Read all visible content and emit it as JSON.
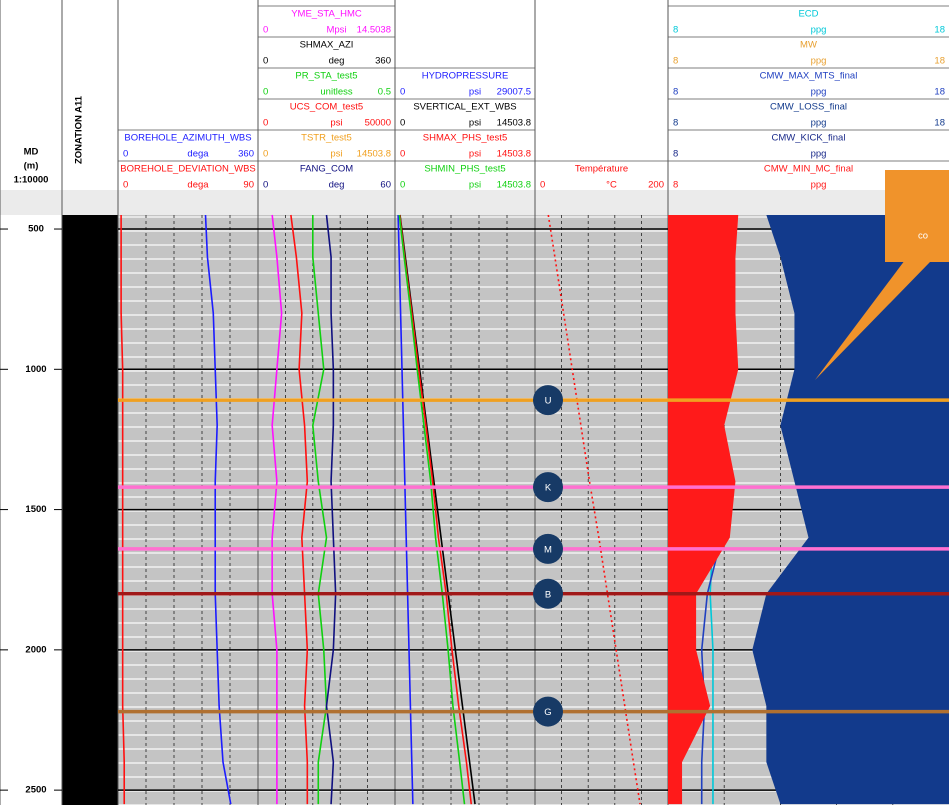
{
  "header": {
    "md": [
      "MD",
      "(m)",
      "1:10000"
    ],
    "zonation": "ZONATION A11",
    "callout": "co"
  },
  "chart_data": {
    "type": "well-log",
    "ylim": [
      450,
      2553
    ],
    "yticks": [
      500,
      1000,
      1500,
      2000,
      2500
    ],
    "depths": [
      450,
      600,
      800,
      1000,
      1200,
      1400,
      1600,
      1800,
      2000,
      2200,
      2400,
      2550
    ],
    "tracks": [
      {
        "curves": [
          {
            "name": "BOREHOLE_AZIMUTH_WBS",
            "min": 0,
            "unit": "dega",
            "max": 360,
            "color": "#1c1cff",
            "values": [
              225,
              230,
              245,
              250,
              255,
              250,
              250,
              250,
              255,
              260,
              270,
              290
            ]
          },
          {
            "name": "BOREHOLE_DEVIATION_WBS",
            "min": 0,
            "unit": "dega",
            "max": 90,
            "color": "#ff1010",
            "values": [
              2,
              2,
              2,
              3,
              3,
              3,
              3,
              3,
              3,
              3,
              4,
              4
            ]
          }
        ]
      },
      {
        "curves": [
          {
            "name": "YME_STA_HMC",
            "min": 0,
            "unit": "Mpsi",
            "max": 14.5038,
            "color": "#ff10ff",
            "values": [
              1.5,
              2,
              2.5,
              2,
              1.5,
              2,
              1.5,
              1.5,
              2,
              2,
              2,
              2
            ]
          },
          {
            "name": "SHMAX_AZI",
            "min": 0,
            "unit": "deg",
            "max": 360,
            "color": "#000000"
          },
          {
            "name": "PR_STA_test5",
            "min": 0,
            "unit": "unitless",
            "max": 0.5,
            "color": "#10d010",
            "values": [
              0.2,
              0.2,
              0.22,
              0.24,
              0.2,
              0.22,
              0.25,
              0.22,
              0.24,
              0.25,
              0.22,
              0.22
            ]
          },
          {
            "name": "UCS_COM_test5",
            "min": 0,
            "unit": "psi",
            "max": 50000,
            "color": "#ff1010",
            "values": [
              12000,
              14000,
              16000,
              15000,
              17000,
              18000,
              16000,
              17000,
              18000,
              17000,
              18000,
              18000
            ]
          },
          {
            "name": "TSTR_test5",
            "min": 0,
            "unit": "psi",
            "max": 14503.8,
            "color": "#f0a020"
          },
          {
            "name": "FANG_COM",
            "min": 0,
            "unit": "deg",
            "max": 60,
            "color": "#101080",
            "values": [
              30,
              32,
              32,
              33,
              33,
              32,
              33,
              34,
              33,
              30,
              33,
              32
            ]
          }
        ]
      },
      {
        "curves": [
          {
            "name": "HYDROPRESSURE",
            "min": 0,
            "unit": "psi",
            "max": 29007.5,
            "color": "#1c1cff",
            "values": [
              650,
              870,
              1160,
              1450,
              1740,
              2030,
              2320,
              2610,
              2900,
              3190,
              3480,
              3700
            ]
          },
          {
            "name": "SVERTICAL_EXT_WBS",
            "min": 0,
            "unit": "psi",
            "max": 14503.8,
            "color": "#000000",
            "values": [
              520,
              1070,
              1810,
              2550,
              3290,
              4030,
              4770,
              5510,
              6250,
              6990,
              7730,
              8290
            ]
          },
          {
            "name": "SHMAX_PHS_test5",
            "min": 0,
            "unit": "psi",
            "max": 14503.8,
            "color": "#ff1010",
            "values": [
              500,
              1000,
              1750,
              2450,
              3200,
              3900,
              4500,
              5300,
              5900,
              6600,
              7400,
              7900
            ]
          },
          {
            "name": "SHMIN_PHS_test5",
            "min": 0,
            "unit": "psi",
            "max": 14503.8,
            "color": "#10d010",
            "values": [
              450,
              950,
              1650,
              2300,
              3000,
              3700,
              4200,
              4900,
              5500,
              6000,
              6700,
              7200
            ]
          }
        ]
      },
      {
        "curves": [
          {
            "name": "Température",
            "min": 0,
            "unit": "°C",
            "max": 200,
            "color": "#ff1010",
            "values": [
              20,
              29.9,
              43,
              56,
              69,
              82,
              96,
              109,
              122,
              135,
              148,
              158
            ]
          }
        ]
      },
      {
        "curves": [
          {
            "name": "ECD",
            "min": 8,
            "unit": "ppg",
            "max": 18,
            "color": "#00c8d8",
            "values": [
              9.6,
              9.6,
              9.6,
              9.6,
              9.6,
              9.6,
              9.6,
              9.5,
              9.6,
              9.6,
              9.6,
              9.6
            ]
          },
          {
            "name": "MW",
            "min": 8,
            "unit": "ppg",
            "max": 18,
            "color": "#e8a030"
          },
          {
            "name": "CMW_MAX_MTS_final",
            "min": 8,
            "unit": "ppg",
            "max": 18,
            "color": "#2040c0",
            "values": [
              9.9,
              9.9,
              9.9,
              9.8,
              9.9,
              10,
              9.9,
              9.4,
              9.2,
              9.3,
              9.2,
              9.2
            ]
          },
          {
            "name": "CMW_LOSS_final",
            "min": 8,
            "unit": "ppg",
            "max": 18,
            "color": "#123a8c",
            "fill": "right",
            "values": [
              11.5,
              12,
              12.5,
              12.5,
              12,
              12.5,
              13,
              11.5,
              11,
              11.5,
              11.5,
              12
            ]
          },
          {
            "name": "CMW_KICK_final",
            "min": 8,
            "unit": "ppg",
            "color": "#1a2a8a"
          },
          {
            "name": "CMW_MIN_MC_final",
            "min": 8,
            "unit": "ppg",
            "color": "#ff1a1a",
            "fill": "left",
            "values": [
              10.5,
              10.4,
              10.4,
              10.5,
              10,
              10.4,
              10.2,
              9,
              9,
              9.5,
              8.5,
              8.5
            ]
          }
        ]
      }
    ],
    "formation_tops": {
      "labels": [
        "U",
        "K",
        "M",
        "B",
        "G"
      ],
      "values": [
        1110,
        1420,
        1640,
        1800,
        2220
      ],
      "colors": [
        "#f0a020",
        "#ff70d0",
        "#ff70d0",
        "#a01818",
        "#b07030"
      ]
    }
  }
}
